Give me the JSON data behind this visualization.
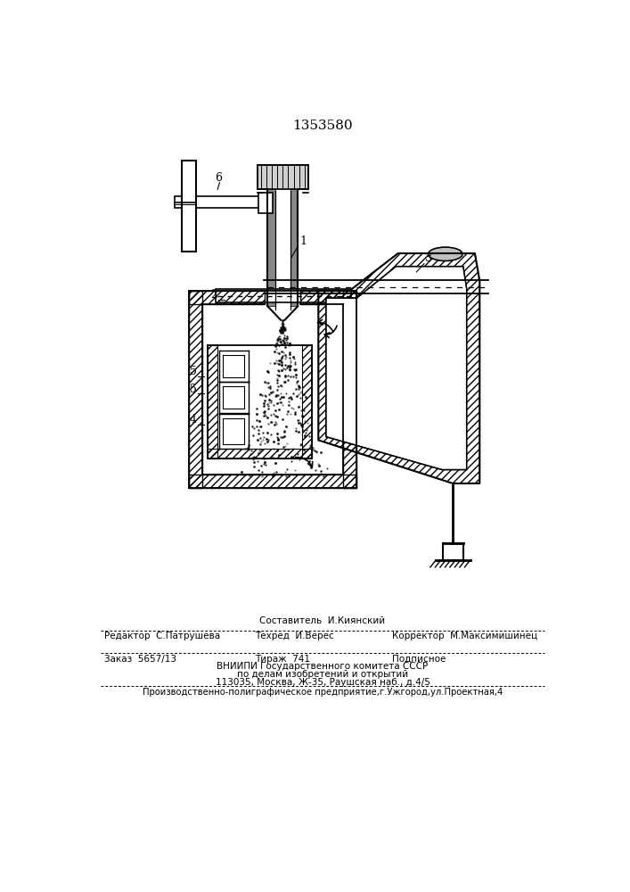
{
  "patent_number": "1353580",
  "bg_color": "#ffffff",
  "line_color": "#000000",
  "footer": {
    "sestavitel": "Составитель  И.Киянский",
    "redaktor": "Редактор  С.Патрушева",
    "tekhred": "Техред  И.Верес",
    "korrektor": "Корректор  М.Максимишинец",
    "zakaz": "Заказ  5657/13",
    "tirazh": "Тираж  741",
    "podpisnoe": "Подписное",
    "vnipi": "ВНИИПИ Государственного комитета СССР",
    "po_delam": "по делам изобретений и открытий",
    "address": "113035, Москва, Ж-35, Раушская наб., д.4/5",
    "proizv": "Производственно-полиграфическое предприятие,г.Ужгород,ул.Проектная,4"
  }
}
